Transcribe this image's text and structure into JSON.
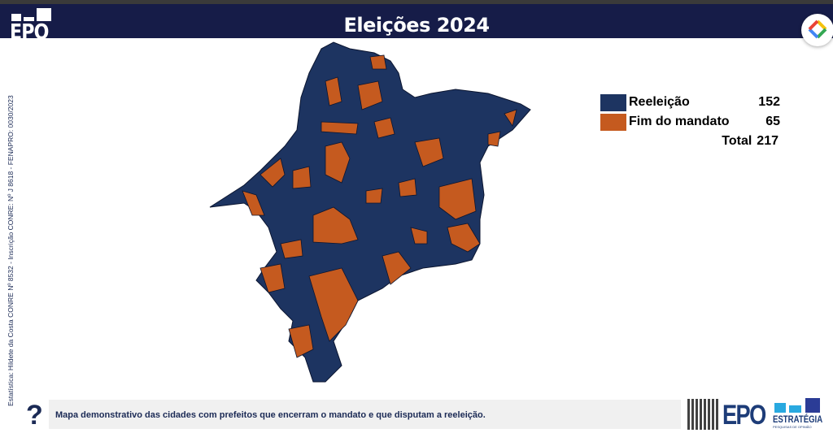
{
  "header": {
    "title": "Eleições 2024",
    "logo_text": "EPO"
  },
  "sidebar_credit": "Estatística: Hildete da Costa CONRE Nº 8532  - Inscrição CONRE: Nº J 8618 - FENAPRO: 0030/2023",
  "legend": {
    "items": [
      {
        "label": "Reeleição",
        "value": "152",
        "color": "#1d3461"
      },
      {
        "label": "Fim do mandato",
        "value": "65",
        "color": "#c55a1f"
      }
    ],
    "total_label": "Total",
    "total_value": "217"
  },
  "footer": {
    "help_icon": "question-mark",
    "caption": "Mapa demonstrativo das cidades com prefeitos que encerram o mandato e que disputam a reeleição.",
    "brand": "EPO",
    "brand_sub": "ESTRATÉGIA",
    "brand_tagline": "PESQUISAS DE OPINIÃO"
  },
  "extension_icon": "diamond-logo-icon"
}
